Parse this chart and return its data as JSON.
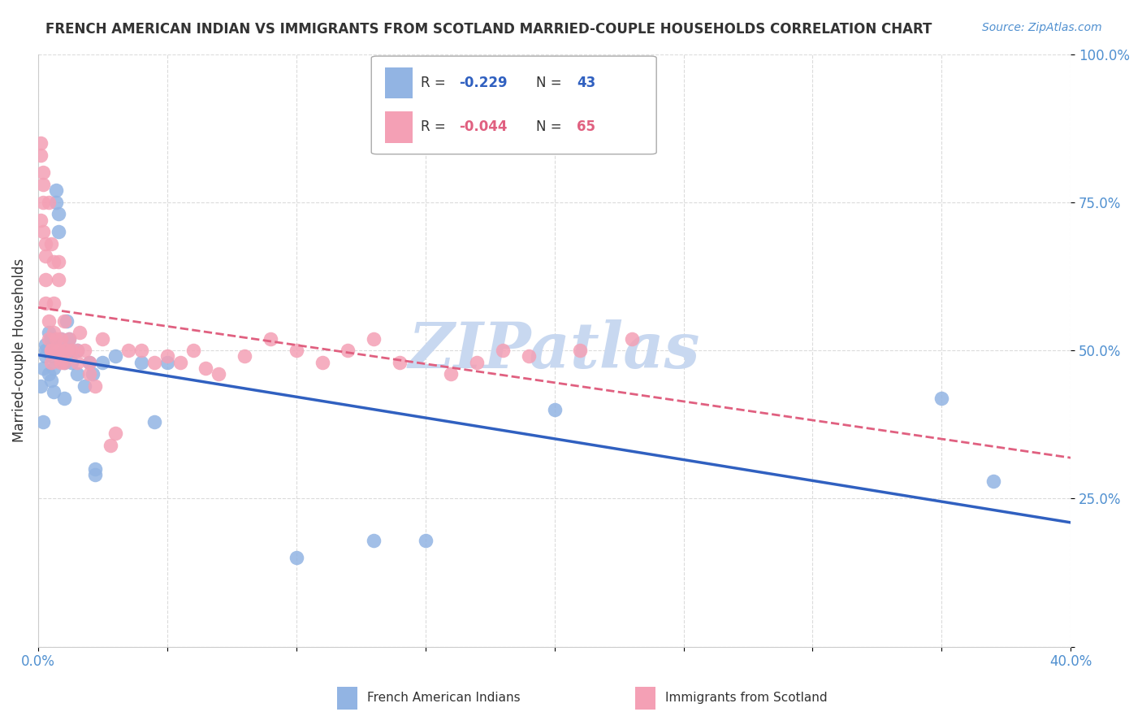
{
  "title": "FRENCH AMERICAN INDIAN VS IMMIGRANTS FROM SCOTLAND MARRIED-COUPLE HOUSEHOLDS CORRELATION CHART",
  "source": "Source: ZipAtlas.com",
  "ylabel": "Married-couple Households",
  "yticks": [
    0.0,
    0.25,
    0.5,
    0.75,
    1.0
  ],
  "ytick_labels": [
    "",
    "25.0%",
    "50.0%",
    "75.0%",
    "100.0%"
  ],
  "xtick_labels": [
    "0.0%",
    "",
    "",
    "",
    "",
    "",
    "",
    "",
    "40.0%"
  ],
  "blue_R": -0.229,
  "blue_N": 43,
  "pink_R": -0.044,
  "pink_N": 65,
  "blue_color": "#92b4e3",
  "pink_color": "#f4a0b5",
  "blue_line_color": "#3060c0",
  "pink_line_color": "#e06080",
  "watermark": "ZIPatlas",
  "watermark_color": "#c8d8f0",
  "axis_color": "#5090d0",
  "grid_color": "#cccccc",
  "title_color": "#333333",
  "blue_points_x": [
    0.001,
    0.002,
    0.002,
    0.003,
    0.003,
    0.003,
    0.004,
    0.004,
    0.005,
    0.005,
    0.005,
    0.006,
    0.006,
    0.007,
    0.007,
    0.008,
    0.008,
    0.009,
    0.01,
    0.01,
    0.01,
    0.011,
    0.012,
    0.012,
    0.013,
    0.015,
    0.015,
    0.018,
    0.02,
    0.021,
    0.022,
    0.022,
    0.025,
    0.03,
    0.04,
    0.045,
    0.05,
    0.1,
    0.13,
    0.15,
    0.2,
    0.35,
    0.37
  ],
  "blue_points_y": [
    0.44,
    0.38,
    0.47,
    0.51,
    0.5,
    0.49,
    0.53,
    0.46,
    0.49,
    0.52,
    0.45,
    0.43,
    0.47,
    0.77,
    0.75,
    0.73,
    0.7,
    0.52,
    0.5,
    0.48,
    0.42,
    0.55,
    0.5,
    0.52,
    0.48,
    0.5,
    0.46,
    0.44,
    0.48,
    0.46,
    0.3,
    0.29,
    0.48,
    0.49,
    0.48,
    0.38,
    0.48,
    0.15,
    0.18,
    0.18,
    0.4,
    0.42,
    0.28
  ],
  "pink_points_x": [
    0.001,
    0.001,
    0.001,
    0.002,
    0.002,
    0.002,
    0.002,
    0.003,
    0.003,
    0.003,
    0.003,
    0.004,
    0.004,
    0.004,
    0.005,
    0.005,
    0.005,
    0.005,
    0.006,
    0.006,
    0.006,
    0.007,
    0.007,
    0.008,
    0.008,
    0.008,
    0.009,
    0.009,
    0.01,
    0.01,
    0.01,
    0.011,
    0.012,
    0.013,
    0.015,
    0.015,
    0.016,
    0.018,
    0.02,
    0.02,
    0.022,
    0.025,
    0.028,
    0.03,
    0.035,
    0.04,
    0.045,
    0.05,
    0.055,
    0.06,
    0.065,
    0.07,
    0.08,
    0.09,
    0.1,
    0.11,
    0.12,
    0.13,
    0.14,
    0.16,
    0.17,
    0.18,
    0.19,
    0.21,
    0.23
  ],
  "pink_points_y": [
    0.85,
    0.83,
    0.72,
    0.8,
    0.78,
    0.75,
    0.7,
    0.68,
    0.66,
    0.62,
    0.58,
    0.55,
    0.52,
    0.75,
    0.68,
    0.5,
    0.5,
    0.48,
    0.65,
    0.58,
    0.53,
    0.52,
    0.5,
    0.65,
    0.62,
    0.5,
    0.52,
    0.48,
    0.55,
    0.5,
    0.48,
    0.5,
    0.52,
    0.5,
    0.5,
    0.48,
    0.53,
    0.5,
    0.48,
    0.46,
    0.44,
    0.52,
    0.34,
    0.36,
    0.5,
    0.5,
    0.48,
    0.49,
    0.48,
    0.5,
    0.47,
    0.46,
    0.49,
    0.52,
    0.5,
    0.48,
    0.5,
    0.52,
    0.48,
    0.46,
    0.48,
    0.5,
    0.49,
    0.5,
    0.52
  ],
  "xlim": [
    0,
    0.4
  ],
  "ylim": [
    0,
    1.0
  ]
}
